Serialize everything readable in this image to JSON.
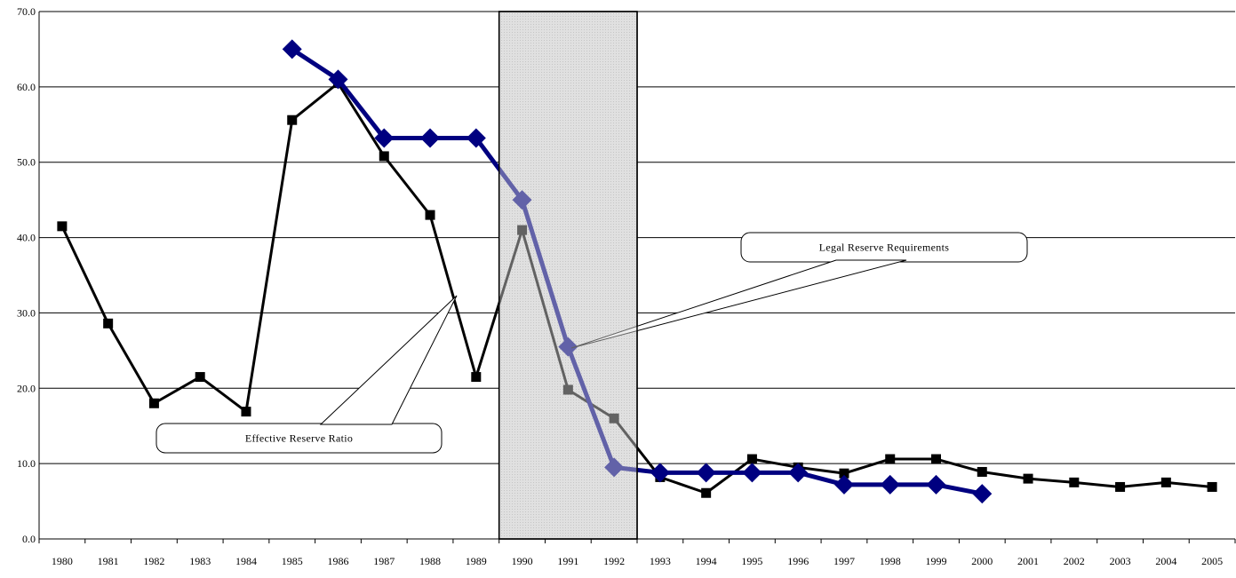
{
  "chart_data": {
    "type": "line",
    "title": "",
    "xlabel": "",
    "ylabel": "",
    "categories": [
      "1980",
      "1981",
      "1982",
      "1983",
      "1984",
      "1985",
      "1986",
      "1987",
      "1988",
      "1989",
      "1990",
      "1991",
      "1992",
      "1993",
      "1994",
      "1995",
      "1996",
      "1997",
      "1998",
      "1999",
      "2000",
      "2001",
      "2002",
      "2003",
      "2004",
      "2005"
    ],
    "ylim": [
      0,
      70
    ],
    "yticks": [
      "0.0",
      "10.0",
      "20.0",
      "30.0",
      "40.0",
      "50.0",
      "60.0",
      "70.0"
    ],
    "grid": "horizontal",
    "series": [
      {
        "name": "Effective Reserve Ratio",
        "color": "#000000",
        "marker": "square",
        "values": [
          41.5,
          28.6,
          18.0,
          21.5,
          16.9,
          55.6,
          60.5,
          50.8,
          43.0,
          21.5,
          41.0,
          19.8,
          16.0,
          8.2,
          6.1,
          10.6,
          9.5,
          8.7,
          10.6,
          10.6,
          8.9,
          8.0,
          7.5,
          6.9,
          7.5,
          6.9
        ]
      },
      {
        "name": "Legal Reserve Requirements",
        "color": "#000080",
        "marker": "diamond",
        "values": [
          null,
          null,
          null,
          null,
          null,
          65.0,
          61.0,
          53.2,
          53.2,
          53.2,
          45.0,
          25.5,
          9.5,
          8.8,
          8.8,
          8.8,
          8.8,
          7.2,
          7.2,
          7.2,
          6.0,
          null,
          null,
          null,
          null,
          null
        ]
      }
    ],
    "shaded_range": [
      "1990",
      "1992"
    ],
    "annotations": [
      {
        "text": "Effective Reserve Ratio",
        "series": 0
      },
      {
        "text": "Legal Reserve Requirements",
        "series": 1
      }
    ]
  }
}
